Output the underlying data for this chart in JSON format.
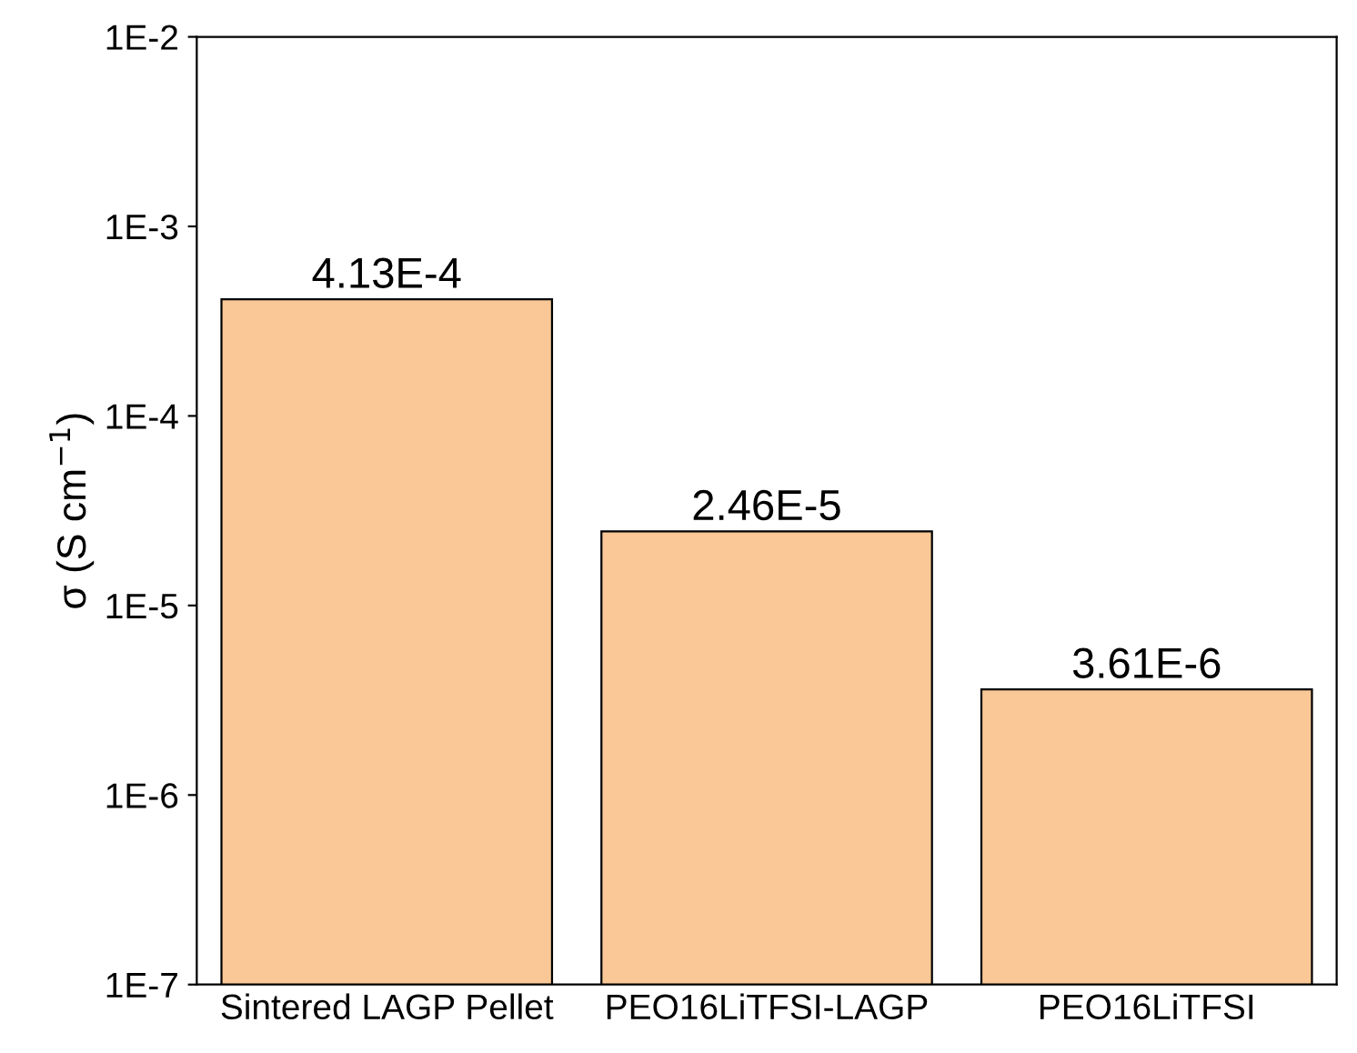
{
  "chart_data": {
    "type": "bar",
    "ylabel": "σ (S cm$^{−1}$)",
    "categories": [
      "Sintered LAGP Pellet",
      "PEO16LiTFSI-LAGP",
      "PEO16LiTFSI"
    ],
    "values": [
      0.000413,
      2.46e-05,
      3.61e-06
    ],
    "value_labels": [
      "4.13E-4",
      "2.46E-5",
      "3.61E-6"
    ],
    "color": "#f9c896",
    "log": true,
    "ylim": [
      1e-07,
      0.01
    ],
    "yticks": [
      {
        "value": 1e-07,
        "label": "1E-7"
      },
      {
        "value": 1e-06,
        "label": "1E-6"
      },
      {
        "value": 1e-05,
        "label": "1E-5"
      },
      {
        "value": 0.0001,
        "label": "1E-4"
      },
      {
        "value": 0.001,
        "label": "1E-3"
      },
      {
        "value": 0.01,
        "label": "1E-2"
      }
    ],
    "grid": false,
    "legend": false
  }
}
